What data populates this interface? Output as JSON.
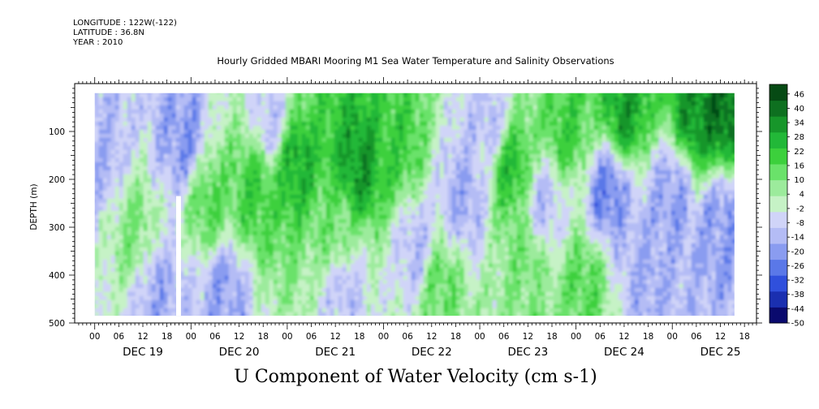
{
  "header": {
    "longitude": "LONGITUDE : 122W(-122)",
    "latitude": "LATITUDE : 36.8N",
    "year": "YEAR : 2010"
  },
  "colors": {
    "scale": [
      "#0a0a6e",
      "#1a2fb0",
      "#3050dc",
      "#5a78e8",
      "#8a9cf0",
      "#b4bcf5",
      "#d0d4f8",
      "#c6f2c6",
      "#9ceb9c",
      "#6ae26a",
      "#3cd03c",
      "#22b838",
      "#17962a",
      "#0e7020",
      "#064a14"
    ]
  },
  "chart_data": {
    "type": "heatmap",
    "title": "Hourly Gridded MBARI Mooring M1 Sea Water Temperature and Salinity Observations",
    "variable_label": "U Component of Water Velocity (cm s-1)",
    "ylabel": "DEPTH (m)",
    "y_inverted": true,
    "ylim": [
      500,
      0
    ],
    "yticks": [
      100,
      200,
      300,
      400,
      500
    ],
    "xlim_hours": [
      -5,
      165
    ],
    "data_start_hours": 0,
    "data_end_hours": 159.5,
    "depth_range_observed": [
      20,
      485
    ],
    "gap_hours": [
      20.3,
      21.5
    ],
    "gap_depth_from": 235,
    "x_hour_tick_labels": [
      "00",
      "06",
      "12",
      "18"
    ],
    "day_labels": [
      "DEC 19",
      "DEC 20",
      "DEC 21",
      "DEC 22",
      "DEC 23",
      "DEC 24",
      "DEC 25"
    ],
    "colorbar_labels": [
      46,
      40,
      34,
      28,
      22,
      16,
      10,
      4,
      -2,
      -8,
      -14,
      -20,
      -26,
      -32,
      -38,
      -44,
      -50
    ],
    "colorbar_range": [
      -50,
      50
    ],
    "legend_position": "right",
    "structure": [
      {
        "x": 2,
        "y": 150,
        "value": -14
      },
      {
        "x": 10,
        "y": 300,
        "value": 10
      },
      {
        "x": 16,
        "y": 440,
        "value": -16
      },
      {
        "x": 22,
        "y": 120,
        "value": -20
      },
      {
        "x": 28,
        "y": 250,
        "value": 16
      },
      {
        "x": 32,
        "y": 440,
        "value": -18
      },
      {
        "x": 40,
        "y": 220,
        "value": 20
      },
      {
        "x": 44,
        "y": 80,
        "value": -10
      },
      {
        "x": 50,
        "y": 160,
        "value": 28
      },
      {
        "x": 60,
        "y": 320,
        "value": 12
      },
      {
        "x": 62,
        "y": 420,
        "value": -12
      },
      {
        "x": 66,
        "y": 170,
        "value": 32
      },
      {
        "x": 76,
        "y": 120,
        "value": 20
      },
      {
        "x": 80,
        "y": 350,
        "value": -12
      },
      {
        "x": 86,
        "y": 420,
        "value": 14
      },
      {
        "x": 92,
        "y": 240,
        "value": -16
      },
      {
        "x": 98,
        "y": 80,
        "value": -12
      },
      {
        "x": 104,
        "y": 180,
        "value": 24
      },
      {
        "x": 108,
        "y": 360,
        "value": 12
      },
      {
        "x": 112,
        "y": 260,
        "value": -12
      },
      {
        "x": 118,
        "y": 90,
        "value": 20
      },
      {
        "x": 122,
        "y": 420,
        "value": 16
      },
      {
        "x": 128,
        "y": 230,
        "value": -24
      },
      {
        "x": 132,
        "y": 60,
        "value": 30
      },
      {
        "x": 138,
        "y": 400,
        "value": -16
      },
      {
        "x": 144,
        "y": 240,
        "value": -18
      },
      {
        "x": 150,
        "y": 60,
        "value": 34
      },
      {
        "x": 156,
        "y": 40,
        "value": 40
      },
      {
        "x": 156,
        "y": 300,
        "value": -20
      }
    ]
  }
}
